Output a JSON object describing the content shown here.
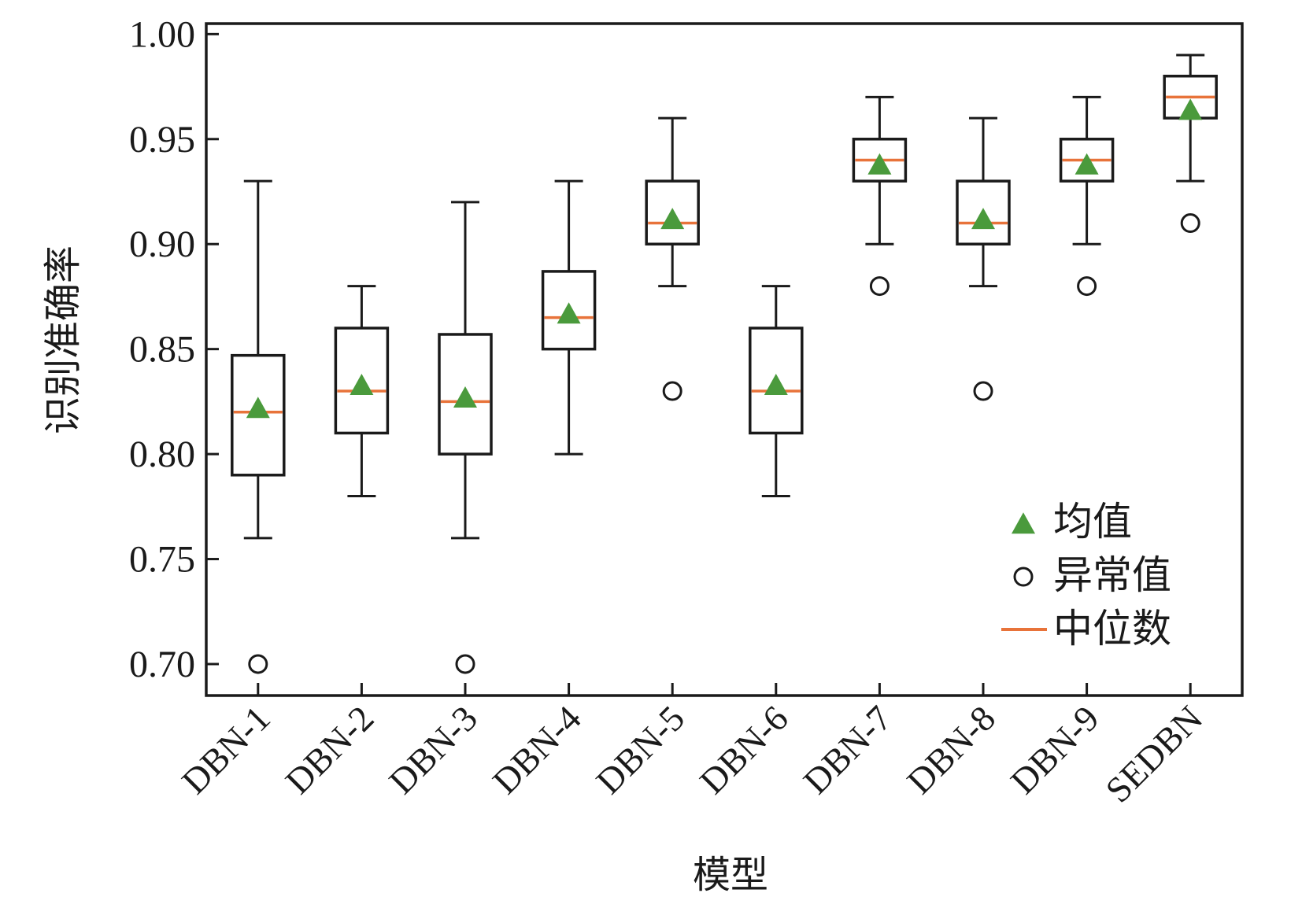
{
  "chart_data": {
    "type": "box",
    "title": "",
    "xlabel": "模型",
    "ylabel": "识别准确率",
    "ylim": [
      0.685,
      1.005
    ],
    "yticks": [
      "0.70",
      "0.75",
      "0.80",
      "0.85",
      "0.90",
      "0.95",
      "1.00"
    ],
    "categories": [
      "DBN-1",
      "DBN-2",
      "DBN-3",
      "DBN-4",
      "DBN-5",
      "DBN-6",
      "DBN-7",
      "DBN-8",
      "DBN-9",
      "SEDBN"
    ],
    "boxes": [
      {
        "whisker_low": 0.76,
        "q1": 0.79,
        "median": 0.82,
        "q3": 0.847,
        "whisker_high": 0.93,
        "mean": 0.821,
        "outliers": [
          0.7
        ]
      },
      {
        "whisker_low": 0.78,
        "q1": 0.81,
        "median": 0.83,
        "q3": 0.86,
        "whisker_high": 0.88,
        "mean": 0.832,
        "outliers": []
      },
      {
        "whisker_low": 0.76,
        "q1": 0.8,
        "median": 0.825,
        "q3": 0.857,
        "whisker_high": 0.92,
        "mean": 0.826,
        "outliers": [
          0.7
        ]
      },
      {
        "whisker_low": 0.8,
        "q1": 0.85,
        "median": 0.865,
        "q3": 0.887,
        "whisker_high": 0.93,
        "mean": 0.866,
        "outliers": []
      },
      {
        "whisker_low": 0.88,
        "q1": 0.9,
        "median": 0.91,
        "q3": 0.93,
        "whisker_high": 0.96,
        "mean": 0.911,
        "outliers": [
          0.83
        ]
      },
      {
        "whisker_low": 0.78,
        "q1": 0.81,
        "median": 0.83,
        "q3": 0.86,
        "whisker_high": 0.88,
        "mean": 0.832,
        "outliers": []
      },
      {
        "whisker_low": 0.9,
        "q1": 0.93,
        "median": 0.94,
        "q3": 0.95,
        "whisker_high": 0.97,
        "mean": 0.937,
        "outliers": [
          0.88
        ]
      },
      {
        "whisker_low": 0.88,
        "q1": 0.9,
        "median": 0.91,
        "q3": 0.93,
        "whisker_high": 0.96,
        "mean": 0.911,
        "outliers": [
          0.83
        ]
      },
      {
        "whisker_low": 0.9,
        "q1": 0.93,
        "median": 0.94,
        "q3": 0.95,
        "whisker_high": 0.97,
        "mean": 0.937,
        "outliers": [
          0.88
        ]
      },
      {
        "whisker_low": 0.93,
        "q1": 0.96,
        "median": 0.97,
        "q3": 0.98,
        "whisker_high": 0.99,
        "mean": 0.963,
        "outliers": [
          0.91
        ]
      }
    ],
    "legend": {
      "placement": "bottom-right",
      "mean_label": "均值",
      "outlier_label": "异常值",
      "median_label": "中位数"
    },
    "colors": {
      "mean": "#4a9a3c",
      "median": "#e8733a",
      "box": "#1a1a1a"
    },
    "grid": false
  }
}
